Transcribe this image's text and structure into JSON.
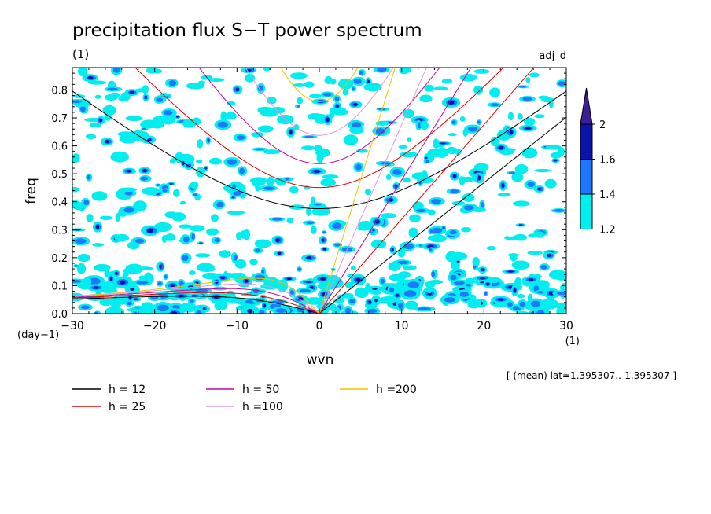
{
  "chart_data": {
    "type": "heatmap",
    "title": "precipitation flux S−T power spectrum",
    "units_label": "(1)",
    "right_label": "adj_d",
    "xlabel": "wvn",
    "ylabel": "freq",
    "x_units": "(1)",
    "y_units": "(day−1)",
    "xlim": [
      -30,
      30
    ],
    "ylim": [
      0,
      0.88
    ],
    "x_ticks": [
      "−30",
      "−20",
      "−10",
      "0",
      "10",
      "20",
      "30"
    ],
    "y_ticks": [
      "0.0",
      "0.1",
      "0.2",
      "0.3",
      "0.4",
      "0.5",
      "0.6",
      "0.7",
      "0.8"
    ],
    "note": "[ (mean) lat=1.395307..-1.395307 ]",
    "colorbar": {
      "levels": [
        "1.2",
        "1.4",
        "1.6",
        "2"
      ],
      "colors": [
        "#00eeee",
        "#1e78ff",
        "#0a14a8",
        "#3c1e96"
      ]
    },
    "contour_fill": {
      "color_light": "#00eeee",
      "color_mid": "#1e78ff",
      "color_dark": "#0a14a8",
      "seed": 7
    },
    "series": [
      {
        "name": "h = 12",
        "h": 12,
        "color": "#000000"
      },
      {
        "name": "h = 25",
        "h": 25,
        "color": "#e00000"
      },
      {
        "name": "h = 50",
        "h": 50,
        "color": "#c800a0"
      },
      {
        "name": "h =100",
        "h": 100,
        "color": "#dc96dc"
      },
      {
        "name": "h =200",
        "h": 200,
        "color": "#f0c000"
      }
    ]
  }
}
